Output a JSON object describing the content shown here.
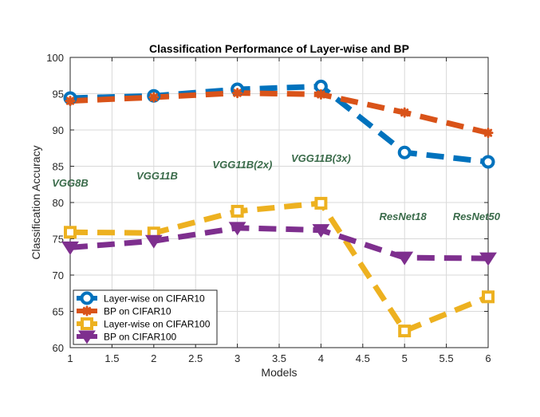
{
  "chart_data": {
    "type": "line",
    "title": "Classification Performance of Layer-wise and BP",
    "xlabel": "Models",
    "ylabel": "Classification Accuracy",
    "xlim": [
      1,
      6
    ],
    "ylim": [
      60,
      100
    ],
    "xticks": [
      "1",
      "1.5",
      "2",
      "2.5",
      "3",
      "3.5",
      "4",
      "4.5",
      "5",
      "5.5",
      "6"
    ],
    "yticks": [
      "60",
      "65",
      "70",
      "75",
      "80",
      "85",
      "90",
      "95",
      "100"
    ],
    "grid": true,
    "legend_position": "bottom-left",
    "x": [
      1,
      2,
      3,
      4,
      5,
      6
    ],
    "series": [
      {
        "name": "Layer-wise on CIFAR10",
        "values": [
          94.4,
          94.7,
          95.6,
          96.0,
          86.9,
          85.6
        ],
        "color": "#0072BD",
        "marker": "circle"
      },
      {
        "name": "BP on CIFAR10",
        "values": [
          94.0,
          94.5,
          95.1,
          94.9,
          92.4,
          89.6
        ],
        "color": "#D95319",
        "marker": "asterisk"
      },
      {
        "name": "Layer-wise on CIFAR100",
        "values": [
          75.9,
          75.8,
          78.8,
          79.9,
          62.3,
          67.0
        ],
        "color": "#EDB120",
        "marker": "square"
      },
      {
        "name": "BP on CIFAR100",
        "values": [
          73.8,
          74.7,
          76.5,
          76.2,
          72.4,
          72.3
        ],
        "color": "#7E2F8E",
        "marker": "triangle-down"
      }
    ],
    "annotations": [
      {
        "text": "VGG8B",
        "x": 1.0,
        "y": 82.2
      },
      {
        "text": "VGG11B",
        "x": 2.04,
        "y": 83.2
      },
      {
        "text": "VGG11B(2x)",
        "x": 3.06,
        "y": 84.7
      },
      {
        "text": "VGG11B(3x)",
        "x": 4.0,
        "y": 85.6
      },
      {
        "text": "ResNet18",
        "x": 4.98,
        "y": 77.6
      },
      {
        "text": "ResNet50",
        "x": 5.86,
        "y": 77.6
      }
    ],
    "annotation_color": "#3A6B4A"
  }
}
